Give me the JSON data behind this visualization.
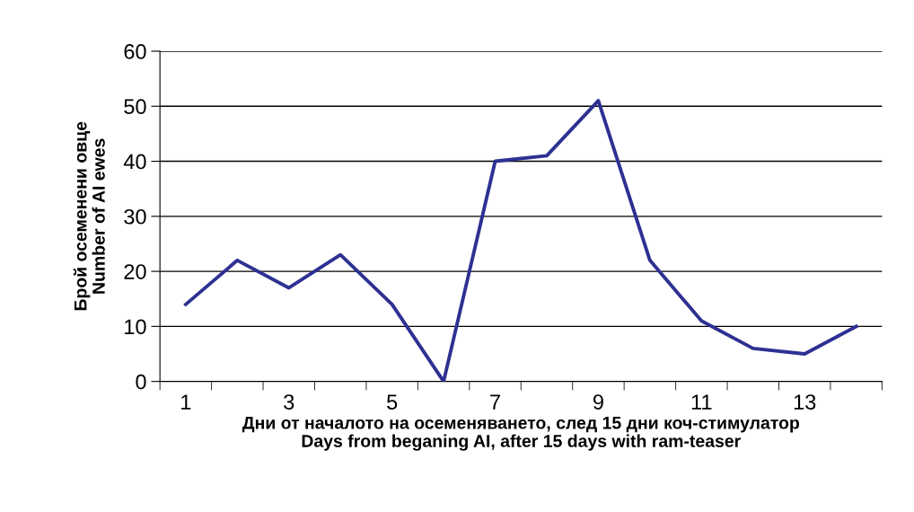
{
  "chart_data": {
    "type": "line",
    "xlabel": "Дни от началото на осеменяването, след 15 дни коч-стимулатор\nDays from beganing AI, after 15 days with ram-teaser",
    "ylabel": "Брой осеменени овце\nNumber of AI ewes",
    "categories": [
      "1",
      null,
      "3",
      null,
      "5",
      null,
      "7",
      null,
      "9",
      null,
      "11",
      null,
      "13",
      null
    ],
    "series": [
      {
        "color": "#2e3192",
        "values": [
          14,
          22,
          17,
          23,
          14,
          0,
          40,
          41,
          51,
          22,
          11,
          6,
          5,
          10
        ]
      }
    ],
    "ylim": [
      0,
      60
    ],
    "yticks": [
      0,
      10,
      20,
      30,
      40,
      50,
      60
    ],
    "grid": "y",
    "marker": "none",
    "line_style": "solid",
    "legend": false
  }
}
